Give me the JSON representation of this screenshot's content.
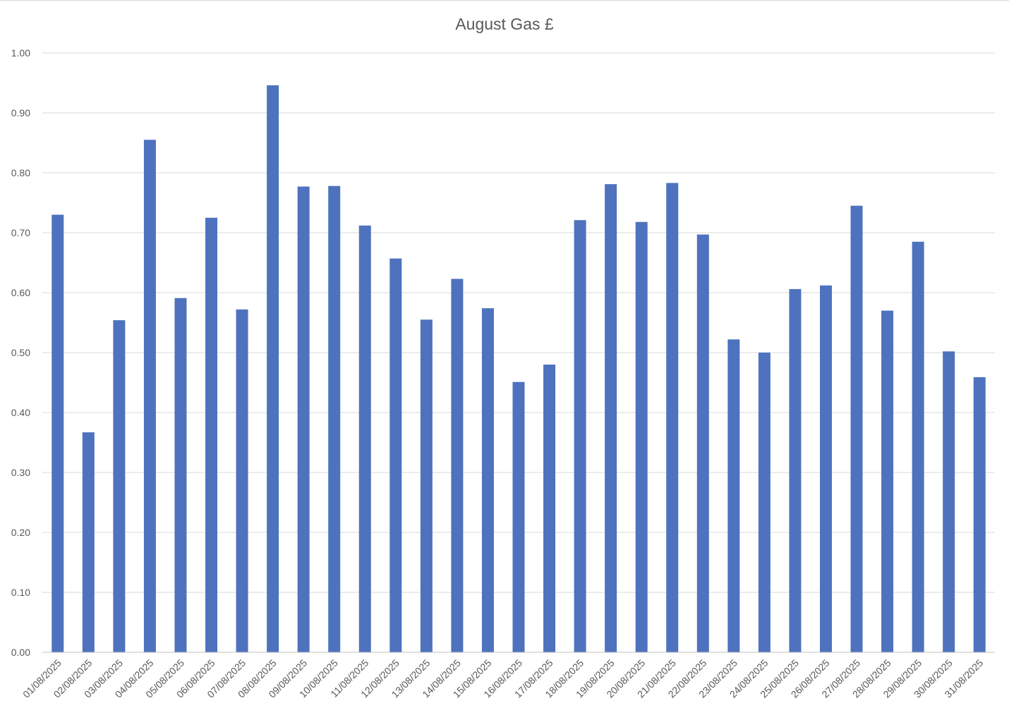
{
  "chart_data": {
    "type": "bar",
    "title": "August Gas £",
    "xlabel": "",
    "ylabel": "",
    "ylim": [
      0,
      1.0
    ],
    "yticks": [
      "0.00",
      "0.10",
      "0.20",
      "0.30",
      "0.40",
      "0.50",
      "0.60",
      "0.70",
      "0.80",
      "0.90",
      "1.00"
    ],
    "grid": true,
    "legend": "none",
    "color": "#4e72be",
    "categories": [
      "01/08/2025",
      "02/08/2025",
      "03/08/2025",
      "04/08/2025",
      "05/08/2025",
      "06/08/2025",
      "07/08/2025",
      "08/08/2025",
      "09/08/2025",
      "10/08/2025",
      "11/08/2025",
      "12/08/2025",
      "13/08/2025",
      "14/08/2025",
      "15/08/2025",
      "16/08/2025",
      "17/08/2025",
      "18/08/2025",
      "19/08/2025",
      "20/08/2025",
      "21/08/2025",
      "22/08/2025",
      "23/08/2025",
      "24/08/2025",
      "25/08/2025",
      "26/08/2025",
      "27/08/2025",
      "28/08/2025",
      "29/08/2025",
      "30/08/2025",
      "31/08/2025"
    ],
    "values": [
      0.73,
      0.367,
      0.554,
      0.855,
      0.591,
      0.725,
      0.572,
      0.946,
      0.777,
      0.778,
      0.712,
      0.657,
      0.555,
      0.623,
      0.574,
      0.451,
      0.48,
      0.721,
      0.781,
      0.718,
      0.783,
      0.697,
      0.522,
      0.5,
      0.606,
      0.612,
      0.745,
      0.57,
      0.685,
      0.502,
      0.459
    ]
  }
}
